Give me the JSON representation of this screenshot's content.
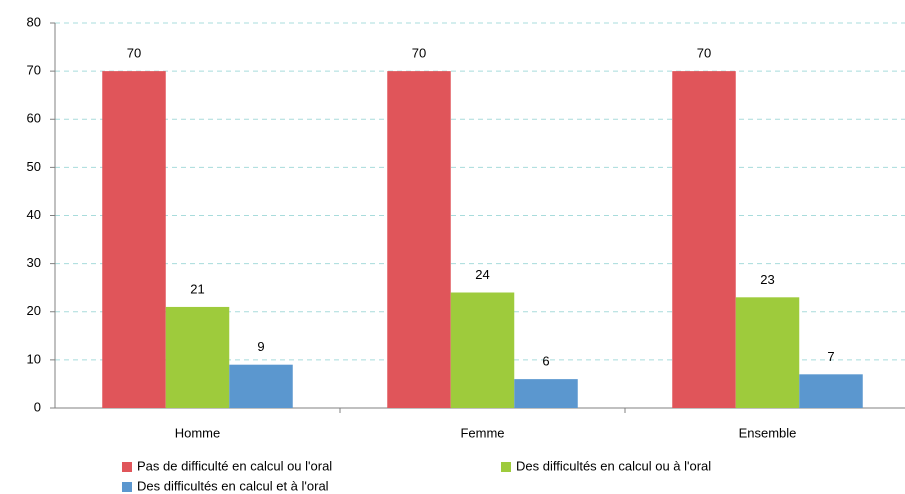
{
  "chart_data": {
    "type": "bar",
    "categories": [
      "Homme",
      "Femme",
      "Ensemble"
    ],
    "series": [
      {
        "name": "Pas de difficulté en calcul ou l'oral",
        "color": "#e0555a",
        "values": [
          70,
          70,
          70
        ]
      },
      {
        "name": "Des difficultés en calcul ou à l'oral",
        "color": "#9ecb3c",
        "values": [
          21,
          24,
          23
        ]
      },
      {
        "name": "Des difficultés en calcul et à l'oral",
        "color": "#5b97cf",
        "values": [
          9,
          6,
          7
        ]
      }
    ],
    "ylim": [
      0,
      80
    ],
    "yticks": [
      0,
      10,
      20,
      30,
      40,
      50,
      60,
      70,
      80
    ],
    "grid": true,
    "legend": "bottom"
  }
}
